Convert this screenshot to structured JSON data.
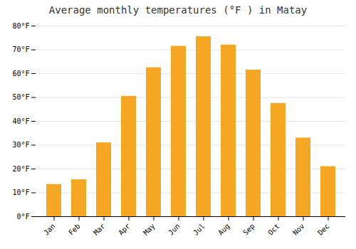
{
  "chart_data": {
    "type": "bar",
    "title": "Average monthly temperatures (°F ) in Matay",
    "categories": [
      "Jan",
      "Feb",
      "Mar",
      "Apr",
      "May",
      "Jun",
      "Jul",
      "Aug",
      "Sep",
      "Oct",
      "Nov",
      "Dec"
    ],
    "values": [
      13.5,
      15.5,
      31.0,
      50.5,
      62.5,
      71.5,
      75.5,
      72.0,
      61.5,
      47.5,
      33.0,
      21.0
    ],
    "color": "#F5A623",
    "ylim": [
      0,
      80
    ],
    "yticks": [
      {
        "value": 0,
        "label": "0°F"
      },
      {
        "value": 10,
        "label": "10°F"
      },
      {
        "value": 20,
        "label": "20°F"
      },
      {
        "value": 30,
        "label": "30°F"
      },
      {
        "value": 40,
        "label": "40°F"
      },
      {
        "value": 50,
        "label": "50°F"
      },
      {
        "value": 60,
        "label": "60°F"
      },
      {
        "value": 70,
        "label": "70°F"
      },
      {
        "value": 80,
        "label": "80°F"
      }
    ],
    "grid": true
  }
}
